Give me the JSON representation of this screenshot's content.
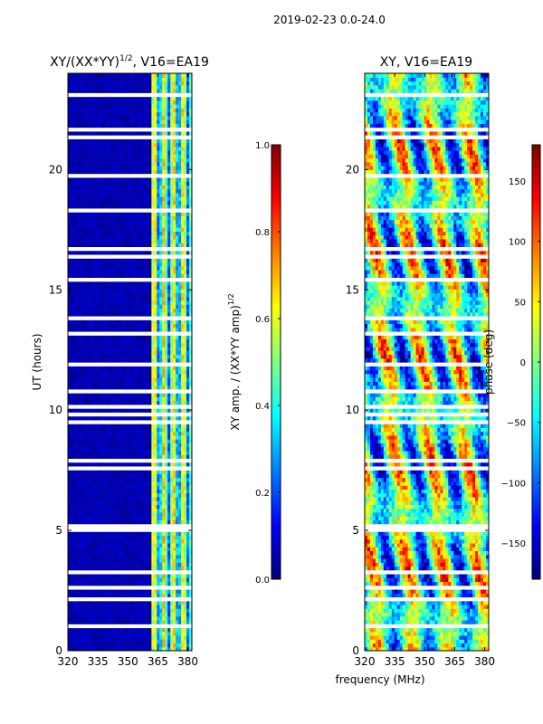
{
  "suptitle": "2019-02-23 0.0-24.0",
  "xlabel": "frequency (MHz)",
  "colors": {
    "jet": [
      "#00007f",
      "#0000ff",
      "#007fff",
      "#00ffff",
      "#7fff7f",
      "#ffff00",
      "#ff7f00",
      "#ff0000",
      "#7f0000"
    ],
    "gap": "#ffffff",
    "frame": "#000000"
  },
  "chart_data": [
    {
      "type": "heatmap",
      "title": "XY/(XX*YY)^1/2, V16=EA19",
      "title_main": "XY/(XX*YY)",
      "title_sup": "1/2",
      "title_rest": ", V16=EA19",
      "xlabel": "",
      "ylabel": "UT (hours)",
      "xlim": [
        320,
        382
      ],
      "ylim": [
        0,
        24
      ],
      "xticks": [
        320,
        335,
        350,
        365,
        380
      ],
      "yticks": [
        0,
        5,
        10,
        15,
        20
      ],
      "colorbar": {
        "label": "XY amp. / (XX*YY amp)^1/2",
        "label_main": "XY amp. / (XX*YY amp)",
        "label_sup": "1/2",
        "range": [
          0,
          1
        ],
        "ticks": [
          "0.0",
          "0.2",
          "0.4",
          "0.6",
          "0.8",
          "1.0"
        ],
        "tick_values": [
          0,
          0.2,
          0.4,
          0.6,
          0.8,
          1.0
        ]
      }
    },
    {
      "type": "heatmap",
      "title": "XY, V16=EA19",
      "xlabel": "frequency (MHz)",
      "ylabel": "",
      "xlim": [
        320,
        382
      ],
      "ylim": [
        0,
        24
      ],
      "xticks": [
        320,
        335,
        350,
        365,
        380
      ],
      "yticks": [
        0,
        5,
        10,
        15,
        20
      ],
      "colorbar": {
        "label": "phase (deg)",
        "range": [
          -180,
          180
        ],
        "ticks": [
          "−150",
          "−100",
          "−50",
          "0",
          "50",
          "100",
          "150"
        ],
        "tick_values": [
          -150,
          -100,
          -50,
          0,
          50,
          100,
          150
        ]
      }
    }
  ]
}
